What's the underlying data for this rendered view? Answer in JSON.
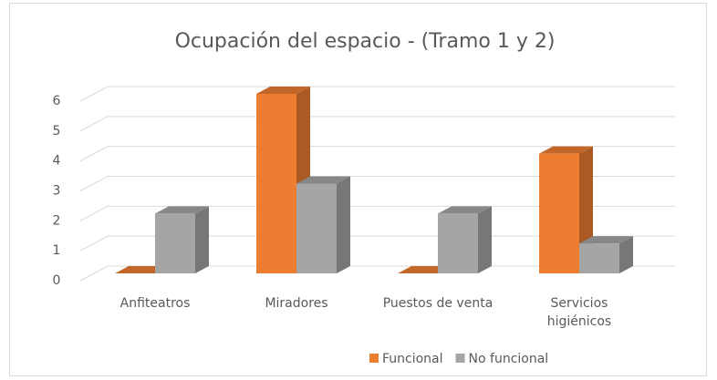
{
  "chart_data": {
    "type": "bar3d",
    "title": "Ocupación del espacio - (Tramo 1 y 2)",
    "categories": [
      "Anfiteatros",
      "Miradores",
      "Puestos de venta",
      "Servicios higiénicos"
    ],
    "series": [
      {
        "name": "Funcional",
        "color": "#ed7d31",
        "values": [
          0,
          6,
          0,
          4
        ]
      },
      {
        "name": "No funcional",
        "color": "#a5a5a5",
        "values": [
          2,
          3,
          2,
          1
        ]
      }
    ],
    "ylim": [
      0,
      6
    ],
    "yticks": [
      0,
      1,
      2,
      3,
      4,
      5,
      6
    ],
    "grid": true,
    "legend": "bottom"
  }
}
